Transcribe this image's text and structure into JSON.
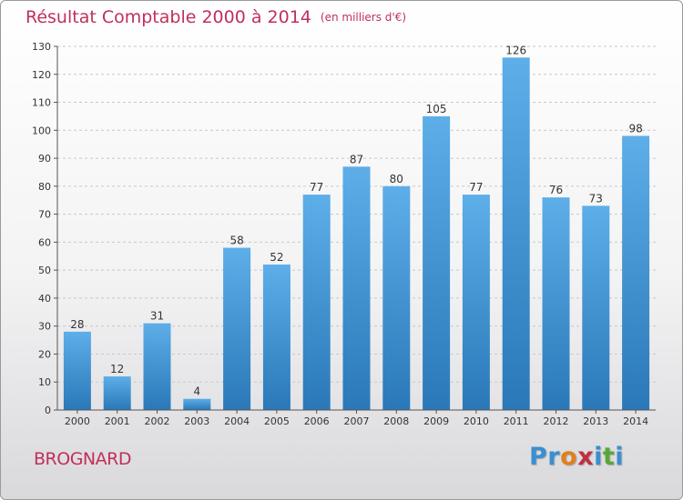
{
  "title": "Résultat Comptable 2000 à 2014",
  "unit": "(en milliers d'€)",
  "town": "BROGNARD",
  "brand": {
    "letters": [
      "P",
      "r",
      "o",
      "x",
      "i",
      "t",
      "i"
    ],
    "colors": [
      "#3a8fd0",
      "#3a8fd0",
      "#e0801e",
      "#c03040",
      "#3a8fd0",
      "#58a838",
      "#3a8fd0"
    ]
  },
  "colors": {
    "title": "#c0305a",
    "bar_top": "#5daee9",
    "bar_bottom": "#2a78b8",
    "axis": "#555555",
    "label": "#333333",
    "grid": "#c8c8c8"
  },
  "chart_data": {
    "type": "bar",
    "title": "Résultat Comptable 2000 à 2014",
    "xlabel": "",
    "ylabel": "",
    "categories": [
      "2000",
      "2001",
      "2002",
      "2003",
      "2004",
      "2005",
      "2006",
      "2007",
      "2008",
      "2009",
      "2010",
      "2011",
      "2012",
      "2013",
      "2014"
    ],
    "values": [
      28,
      12,
      31,
      4,
      58,
      52,
      77,
      87,
      80,
      105,
      77,
      126,
      76,
      73,
      98
    ],
    "ylim": [
      0,
      130
    ],
    "yticks": [
      0,
      10,
      20,
      30,
      40,
      50,
      60,
      70,
      80,
      90,
      100,
      110,
      120,
      130
    ],
    "grid": true
  }
}
